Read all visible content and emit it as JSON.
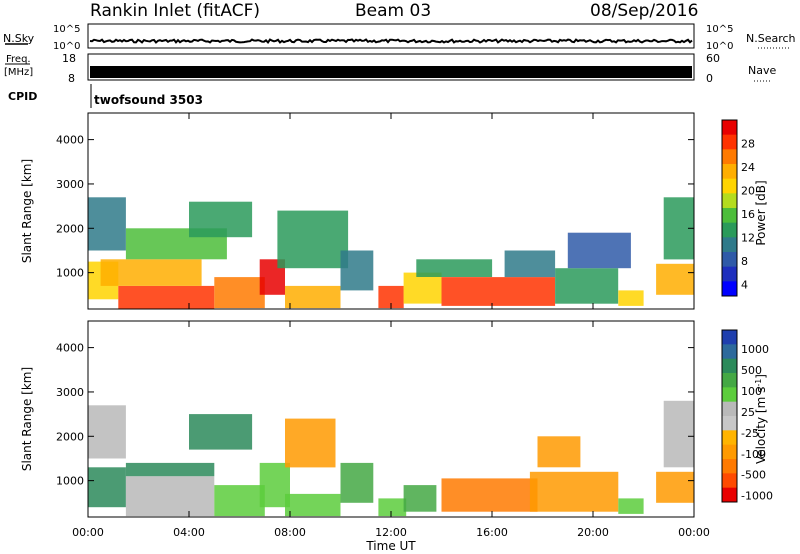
{
  "header": {
    "station": "Rankin Inlet (fitACF)",
    "beam": "Beam 03",
    "date": "08/Sep/2016"
  },
  "status_panels": {
    "nsky": {
      "left_label": "N.Sky",
      "right_label": "N.Search",
      "ticks": [
        "10^5",
        "10^0"
      ]
    },
    "freq": {
      "left_label_1": "Freq.",
      "left_label_2": "[MHz]",
      "left_ticks": [
        "18",
        "8"
      ],
      "right_label": "Nave",
      "right_ticks": [
        "60",
        "0"
      ]
    },
    "cpid": {
      "label": "CPID",
      "program": "twofsound 3503"
    }
  },
  "colorbars": {
    "power": {
      "label": "Power [dB]",
      "ticks": [
        "28",
        "24",
        "20",
        "16",
        "12",
        "8",
        "4"
      ],
      "colors": [
        "#e80000",
        "#ff3300",
        "#ff7a00",
        "#ffae00",
        "#ffd400",
        "#b4dc1e",
        "#4cbd3a",
        "#2a9a5a",
        "#2f7a8a",
        "#2f5aa8",
        "#1e2fbd",
        "#0000ff"
      ]
    },
    "velocity": {
      "label_prefix": "Velocity [m s",
      "label_exp": "-1",
      "label_suffix": "]",
      "ticks": [
        "1000",
        "500",
        "100",
        "25",
        "-25",
        "-100",
        "-500",
        "-1000"
      ],
      "colors": [
        "#1f3fae",
        "#2d6a9c",
        "#2b8a5a",
        "#44a844",
        "#5ccd3c",
        "#b9b9b9",
        "#c7c7c7",
        "#ffb400",
        "#ff9a00",
        "#ff7a00",
        "#ff4a00",
        "#e80000"
      ]
    }
  },
  "chart_data": [
    {
      "type": "heatmap",
      "panel": "power",
      "ylabel": "Slant Range [km]",
      "xlabel": "Time UT",
      "x_range_hours": [
        0,
        24
      ],
      "ylim": [
        180,
        4600
      ],
      "yticks": [
        "1000",
        "2000",
        "3000",
        "4000"
      ],
      "xticks": [
        "00:00",
        "04:00",
        "08:00",
        "12:00",
        "16:00",
        "20:00",
        "00:00"
      ],
      "colorbar_range_db": [
        0,
        30
      ],
      "patches": [
        {
          "t0": 0.0,
          "t1": 1.2,
          "r0": 400,
          "r1": 1250,
          "value": 18
        },
        {
          "t0": 1.2,
          "t1": 5.0,
          "r0": 180,
          "r1": 700,
          "value": 27
        },
        {
          "t0": 0.5,
          "t1": 4.5,
          "r0": 700,
          "r1": 1300,
          "value": 21
        },
        {
          "t0": 5.0,
          "t1": 7.0,
          "r0": 200,
          "r1": 900,
          "value": 24
        },
        {
          "t0": 6.8,
          "t1": 7.8,
          "r0": 500,
          "r1": 1300,
          "value": 28
        },
        {
          "t0": 7.8,
          "t1": 10.0,
          "r0": 200,
          "r1": 700,
          "value": 20
        },
        {
          "t0": 7.5,
          "t1": 10.3,
          "r0": 1100,
          "r1": 2400,
          "value": 12
        },
        {
          "t0": 0.0,
          "t1": 1.5,
          "r0": 1500,
          "r1": 2700,
          "value": 9
        },
        {
          "t0": 1.5,
          "t1": 5.5,
          "r0": 1300,
          "r1": 2000,
          "value": 13
        },
        {
          "t0": 4.0,
          "t1": 6.5,
          "r0": 1800,
          "r1": 2600,
          "value": 10
        },
        {
          "t0": 10.0,
          "t1": 11.3,
          "r0": 600,
          "r1": 1500,
          "value": 9
        },
        {
          "t0": 11.5,
          "t1": 12.5,
          "r0": 200,
          "r1": 700,
          "value": 26
        },
        {
          "t0": 12.5,
          "t1": 14.0,
          "r0": 300,
          "r1": 1000,
          "value": 19
        },
        {
          "t0": 14.0,
          "t1": 18.5,
          "r0": 250,
          "r1": 900,
          "value": 25
        },
        {
          "t0": 13.0,
          "t1": 16.0,
          "r0": 900,
          "r1": 1300,
          "value": 11
        },
        {
          "t0": 18.5,
          "t1": 21.0,
          "r0": 300,
          "r1": 1100,
          "value": 10
        },
        {
          "t0": 19.0,
          "t1": 21.5,
          "r0": 1100,
          "r1": 1900,
          "value": 7
        },
        {
          "t0": 21.0,
          "t1": 22.0,
          "r0": 250,
          "r1": 600,
          "value": 19
        },
        {
          "t0": 22.5,
          "t1": 24.0,
          "r0": 500,
          "r1": 1200,
          "value": 22
        },
        {
          "t0": 22.8,
          "t1": 24.0,
          "r0": 1300,
          "r1": 2700,
          "value": 11
        },
        {
          "t0": 16.5,
          "t1": 18.5,
          "r0": 900,
          "r1": 1500,
          "value": 8
        }
      ]
    },
    {
      "type": "heatmap",
      "panel": "velocity",
      "ylabel": "Slant Range [km]",
      "xlabel": "Time UT",
      "x_range_hours": [
        0,
        24
      ],
      "ylim": [
        180,
        4600
      ],
      "yticks": [
        "1000",
        "2000",
        "3000",
        "4000"
      ],
      "xticks": [
        "00:00",
        "04:00",
        "08:00",
        "12:00",
        "16:00",
        "20:00",
        "00:00"
      ],
      "patches": [
        {
          "t0": 0.0,
          "t1": 1.5,
          "r0": 1500,
          "r1": 2700,
          "value": 0
        },
        {
          "t0": 0.0,
          "t1": 1.5,
          "r0": 400,
          "r1": 1300,
          "value": 300
        },
        {
          "t0": 1.5,
          "t1": 5.0,
          "r0": 200,
          "r1": 1100,
          "value": 0
        },
        {
          "t0": 1.5,
          "t1": 5.0,
          "r0": 1100,
          "r1": 1400,
          "value": 200
        },
        {
          "t0": 5.0,
          "t1": 7.0,
          "r0": 200,
          "r1": 900,
          "value": 60
        },
        {
          "t0": 4.0,
          "t1": 6.5,
          "r0": 1700,
          "r1": 2500,
          "value": 400
        },
        {
          "t0": 6.8,
          "t1": 8.0,
          "r0": 400,
          "r1": 1400,
          "value": 60
        },
        {
          "t0": 7.8,
          "t1": 9.8,
          "r0": 1300,
          "r1": 2400,
          "value": -200
        },
        {
          "t0": 7.8,
          "t1": 10.0,
          "r0": 200,
          "r1": 700,
          "value": 40
        },
        {
          "t0": 10.0,
          "t1": 11.3,
          "r0": 500,
          "r1": 1400,
          "value": 150
        },
        {
          "t0": 11.5,
          "t1": 12.6,
          "r0": 200,
          "r1": 600,
          "value": 50
        },
        {
          "t0": 12.5,
          "t1": 13.8,
          "r0": 300,
          "r1": 900,
          "value": 100
        },
        {
          "t0": 14.0,
          "t1": 17.8,
          "r0": 300,
          "r1": 1050,
          "value": -250
        },
        {
          "t0": 17.5,
          "t1": 21.0,
          "r0": 300,
          "r1": 1200,
          "value": -200
        },
        {
          "t0": 17.8,
          "t1": 19.5,
          "r0": 1300,
          "r1": 2000,
          "value": -150
        },
        {
          "t0": 21.0,
          "t1": 22.0,
          "r0": 250,
          "r1": 600,
          "value": 80
        },
        {
          "t0": 22.5,
          "t1": 24.0,
          "r0": 500,
          "r1": 1200,
          "value": -120
        },
        {
          "t0": 22.8,
          "t1": 24.0,
          "r0": 1300,
          "r1": 2800,
          "value": 0
        }
      ]
    }
  ]
}
